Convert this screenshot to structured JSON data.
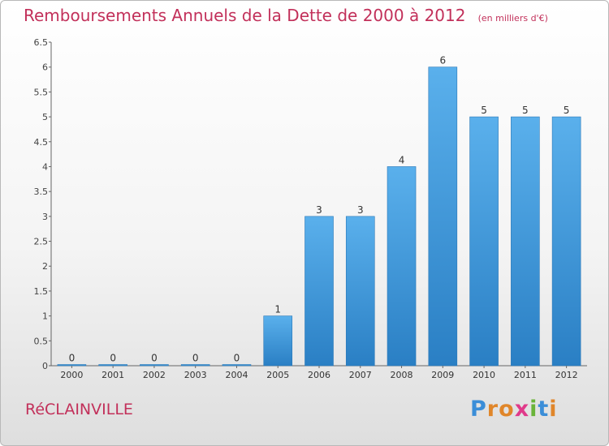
{
  "title": "Remboursements Annuels de la Dette de 2000 à 2012",
  "unit_note": "(en milliers d'€)",
  "commune": "RéCLAINVILLE",
  "brand": {
    "letters": [
      "P",
      "r",
      "o",
      "x",
      "i",
      "t",
      "i"
    ],
    "colors": [
      "#3b8ed8",
      "#e0862a",
      "#e0862a",
      "#e03a8a",
      "#6ab43a",
      "#3b8ed8",
      "#e0862a"
    ]
  },
  "chart_data": {
    "type": "bar",
    "categories": [
      "2000",
      "2001",
      "2002",
      "2003",
      "2004",
      "2005",
      "2006",
      "2007",
      "2008",
      "2009",
      "2010",
      "2011",
      "2012"
    ],
    "values": [
      0,
      0,
      0,
      0,
      0,
      1,
      3,
      3,
      4,
      6,
      5,
      5,
      5
    ],
    "data_labels": [
      "0",
      "0",
      "0",
      "0",
      "0",
      "1",
      "3",
      "3",
      "4",
      "6",
      "5",
      "5",
      "5"
    ],
    "yticks": [
      "0",
      "0.5",
      "1",
      "1.5",
      "2",
      "2.5",
      "3",
      "3.5",
      "4",
      "4.5",
      "5",
      "5.5",
      "6",
      "6.5"
    ],
    "ylim": [
      0,
      6.5
    ],
    "grid": false,
    "bar_color": "#4a9fe0"
  }
}
